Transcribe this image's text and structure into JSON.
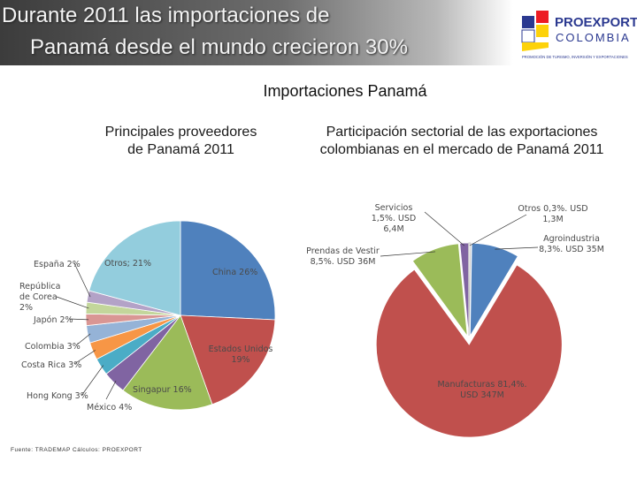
{
  "header": {
    "title": [
      "Durante 2011 las importaciones de",
      "Panamá desde el mundo crecieron 30%"
    ],
    "logo": {
      "name": "PROEXPORT",
      "country": "COLOMBIA",
      "tagline": "PROMOCIÓN DE TURISMO, INVERSIÓN Y EXPORTACIONES"
    }
  },
  "subtitle": "Importaciones Panamá",
  "source": "Fuente: TRADEMAP  Cálculos: PROEXPORT",
  "chart_data": [
    {
      "type": "pie",
      "title": "Principales proveedores de Panamá  2011",
      "values": [
        26,
        19,
        16,
        4,
        3,
        3,
        3,
        2,
        2,
        2,
        21
      ],
      "value_labels": [
        "China 26%",
        "Estados Unidos 19%",
        "Singapur 16%",
        "México 4%",
        "Hong Kong 3%",
        "Costa Rica 3%",
        "Colombia 3%",
        "Japón 2%",
        "República de Corea 2%",
        "España 2%",
        "Otros; 21%"
      ],
      "colors": [
        "#4f81bd",
        "#c0504d",
        "#9bbb59",
        "#8064a2",
        "#4bacc6",
        "#f79646",
        "#95b3d7",
        "#d99694",
        "#c3d69b",
        "#b3a2c7",
        "#93cddd"
      ]
    },
    {
      "type": "pie",
      "title": "Participación sectorial de las exportaciones colombianas en el mercado de Panamá  2011",
      "values": [
        8.3,
        81.4,
        8.5,
        1.5,
        0.3
      ],
      "value_labels": [
        "Agroindustria 8,3%. USD 35M",
        "Manufacturas 81,4%. USD 347M",
        "Prendas de Vestir 8,5%. USD 36M",
        "Servicios 1,5%. USD 6,4M",
        "Otros 0,3%. USD 1,3M"
      ],
      "colors": [
        "#4f81bd",
        "#c0504d",
        "#9bbb59",
        "#8064a2",
        "#ffffff"
      ]
    }
  ]
}
